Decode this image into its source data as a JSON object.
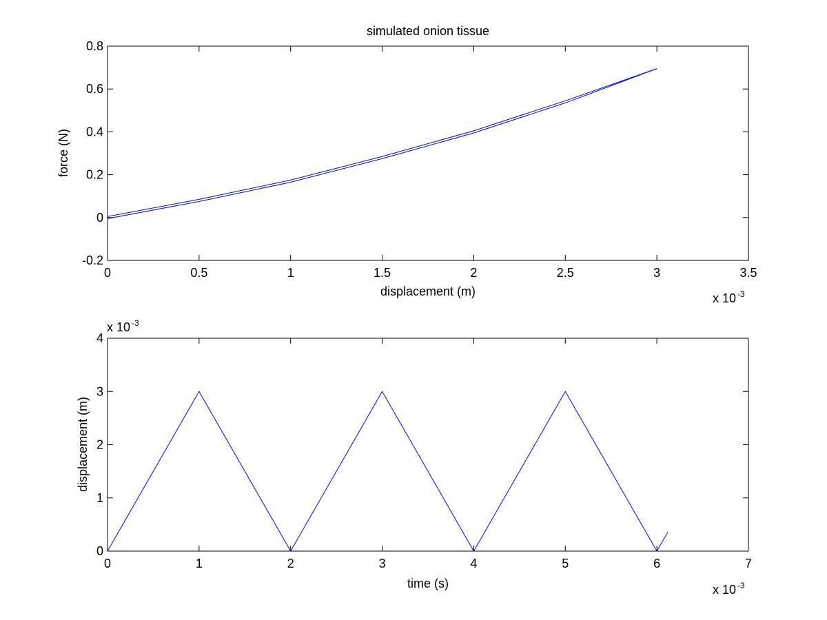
{
  "chart_data": [
    {
      "type": "line",
      "title": "simulated onion tissue",
      "xlabel": "displacement (m)",
      "ylabel": "force (N)",
      "xlim": [
        0,
        0.0035
      ],
      "ylim": [
        -0.2,
        0.8
      ],
      "xticks": [
        0,
        0.5,
        1,
        1.5,
        2,
        2.5,
        3,
        3.5
      ],
      "xtick_labels": [
        "0",
        "0.5",
        "1",
        "1.5",
        "2",
        "2.5",
        "3",
        "3.5"
      ],
      "xtick_scale": 0.001,
      "x_exponent_label": "x 10",
      "x_exponent": "-3",
      "yticks": [
        -0.2,
        0,
        0.2,
        0.4,
        0.6,
        0.8
      ],
      "ytick_labels": [
        "-0.2",
        "0",
        "0.2",
        "0.4",
        "0.6",
        "0.8"
      ],
      "grid": false,
      "color": "#0000ff",
      "series": [
        {
          "x": [
            0,
            0.0005,
            0.001,
            0.0015,
            0.002,
            0.0025,
            0.003
          ],
          "y": [
            -0.005,
            0.075,
            0.165,
            0.275,
            0.395,
            0.535,
            0.695
          ]
        },
        {
          "x": [
            0.003,
            0.0025,
            0.002,
            0.0015,
            0.001,
            0.0005,
            0
          ],
          "y": [
            0.695,
            0.545,
            0.405,
            0.285,
            0.175,
            0.085,
            0.005
          ]
        }
      ]
    },
    {
      "type": "line",
      "title": "",
      "xlabel": "time (s)",
      "ylabel": "displacement (m)",
      "xlim": [
        0,
        0.007
      ],
      "ylim": [
        0,
        0.004
      ],
      "xticks": [
        0,
        1,
        2,
        3,
        4,
        5,
        6,
        7
      ],
      "xtick_labels": [
        "0",
        "1",
        "2",
        "3",
        "4",
        "5",
        "6",
        "7"
      ],
      "xtick_scale": 0.001,
      "x_exponent_label": "x 10",
      "x_exponent": "-3",
      "yticks": [
        0,
        1,
        2,
        3,
        4
      ],
      "ytick_labels": [
        "0",
        "1",
        "2",
        "3",
        "4"
      ],
      "ytick_scale": 0.001,
      "y_exponent_label": "x 10",
      "y_exponent": "-3",
      "grid": false,
      "color": "#0000ff",
      "series": [
        {
          "x": [
            0,
            0.001,
            0.002,
            0.003,
            0.004,
            0.005,
            0.006,
            0.00612
          ],
          "y": [
            0,
            0.003,
            0,
            0.003,
            0,
            0.003,
            0,
            0.00036
          ]
        }
      ]
    }
  ]
}
